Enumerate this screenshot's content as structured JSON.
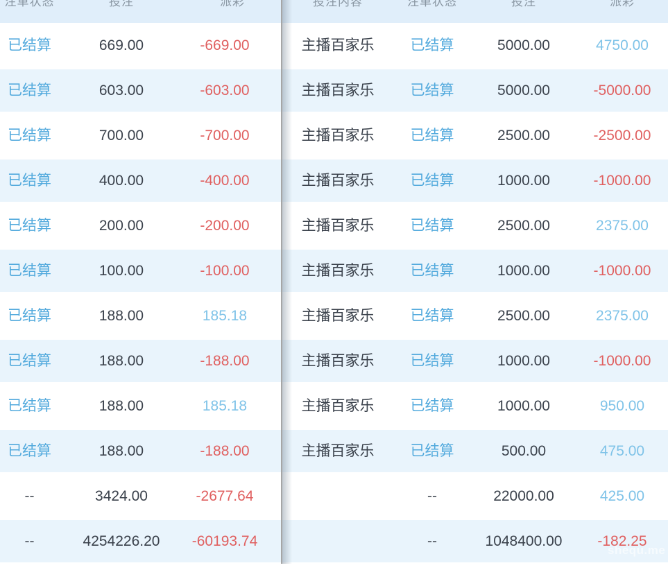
{
  "watermark": "shequ.me",
  "colors": {
    "status_blue": "#53aadd",
    "positive_payout_blue": "#7fc3e8",
    "negative_payout_red": "#e06060",
    "stripe_background": "#e9f4fc",
    "header_background": "#e0eefa",
    "dark_text": "#3b424c",
    "divider_gray": "#a6a6a6"
  },
  "left_table": {
    "headers": [
      "注单状态",
      "投注",
      "派彩"
    ],
    "columns": [
      "status",
      "bet",
      "payout"
    ],
    "rows": [
      {
        "status": "已结算",
        "status_type": "settled",
        "bet": "669.00",
        "payout": "-669.00",
        "payout_type": "negative"
      },
      {
        "status": "已结算",
        "status_type": "settled",
        "bet": "603.00",
        "payout": "-603.00",
        "payout_type": "negative"
      },
      {
        "status": "已结算",
        "status_type": "settled",
        "bet": "700.00",
        "payout": "-700.00",
        "payout_type": "negative"
      },
      {
        "status": "已结算",
        "status_type": "settled",
        "bet": "400.00",
        "payout": "-400.00",
        "payout_type": "negative"
      },
      {
        "status": "已结算",
        "status_type": "settled",
        "bet": "200.00",
        "payout": "-200.00",
        "payout_type": "negative"
      },
      {
        "status": "已结算",
        "status_type": "settled",
        "bet": "100.00",
        "payout": "-100.00",
        "payout_type": "negative"
      },
      {
        "status": "已结算",
        "status_type": "settled",
        "bet": "188.00",
        "payout": "185.18",
        "payout_type": "positive"
      },
      {
        "status": "已结算",
        "status_type": "settled",
        "bet": "188.00",
        "payout": "-188.00",
        "payout_type": "negative"
      },
      {
        "status": "已结算",
        "status_type": "settled",
        "bet": "188.00",
        "payout": "185.18",
        "payout_type": "positive"
      },
      {
        "status": "已结算",
        "status_type": "settled",
        "bet": "188.00",
        "payout": "-188.00",
        "payout_type": "negative"
      },
      {
        "status": "--",
        "status_type": "dash",
        "bet": "3424.00",
        "payout": "-2677.64",
        "payout_type": "negative"
      },
      {
        "status": "--",
        "status_type": "dash",
        "bet": "4254226.20",
        "payout": "-60193.74",
        "payout_type": "negative"
      }
    ]
  },
  "right_table": {
    "headers": [
      "投注内容",
      "注单状态",
      "投注",
      "派彩"
    ],
    "columns": [
      "content",
      "status",
      "bet",
      "payout"
    ],
    "rows": [
      {
        "content": "主播百家乐",
        "status": "已结算",
        "status_type": "settled",
        "bet": "5000.00",
        "payout": "4750.00",
        "payout_type": "positive"
      },
      {
        "content": "主播百家乐",
        "status": "已结算",
        "status_type": "settled",
        "bet": "5000.00",
        "payout": "-5000.00",
        "payout_type": "negative"
      },
      {
        "content": "主播百家乐",
        "status": "已结算",
        "status_type": "settled",
        "bet": "2500.00",
        "payout": "-2500.00",
        "payout_type": "negative"
      },
      {
        "content": "主播百家乐",
        "status": "已结算",
        "status_type": "settled",
        "bet": "1000.00",
        "payout": "-1000.00",
        "payout_type": "negative"
      },
      {
        "content": "主播百家乐",
        "status": "已结算",
        "status_type": "settled",
        "bet": "2500.00",
        "payout": "2375.00",
        "payout_type": "positive"
      },
      {
        "content": "主播百家乐",
        "status": "已结算",
        "status_type": "settled",
        "bet": "1000.00",
        "payout": "-1000.00",
        "payout_type": "negative"
      },
      {
        "content": "主播百家乐",
        "status": "已结算",
        "status_type": "settled",
        "bet": "2500.00",
        "payout": "2375.00",
        "payout_type": "positive"
      },
      {
        "content": "主播百家乐",
        "status": "已结算",
        "status_type": "settled",
        "bet": "1000.00",
        "payout": "-1000.00",
        "payout_type": "negative"
      },
      {
        "content": "主播百家乐",
        "status": "已结算",
        "status_type": "settled",
        "bet": "1000.00",
        "payout": "950.00",
        "payout_type": "positive"
      },
      {
        "content": "主播百家乐",
        "status": "已结算",
        "status_type": "settled",
        "bet": "500.00",
        "payout": "475.00",
        "payout_type": "positive"
      },
      {
        "content": "",
        "status": "--",
        "status_type": "dash",
        "bet": "22000.00",
        "payout": "425.00",
        "payout_type": "positive"
      },
      {
        "content": "",
        "status": "--",
        "status_type": "dash",
        "bet": "1048400.00",
        "payout": "-182.25",
        "payout_type": "negative"
      }
    ]
  }
}
